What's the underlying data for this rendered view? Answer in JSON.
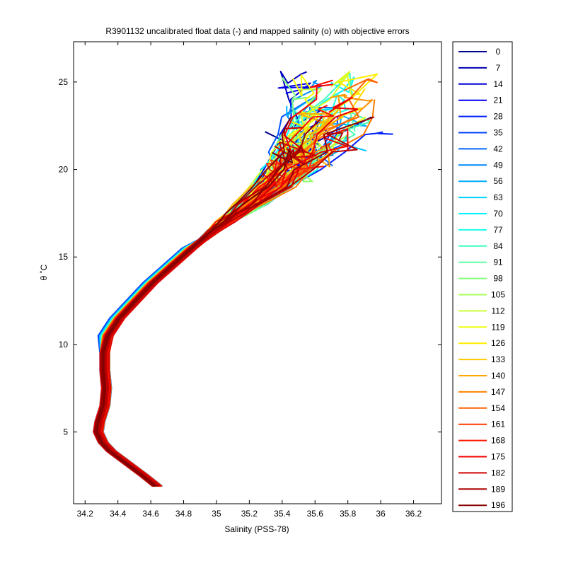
{
  "chart_data": {
    "type": "line",
    "title": "R3901132 uncalibrated float data (-) and mapped salinity (o) with objective errors",
    "xlabel": "Salinity (PSS-78)",
    "ylabel": "θ ˚C",
    "xlim": [
      34.13,
      36.37
    ],
    "ylim": [
      0.9,
      27.3
    ],
    "xticks": [
      "34.2",
      "34.4",
      "34.6",
      "34.8",
      "35",
      "35.2",
      "35.4",
      "35.6",
      "35.8",
      "36",
      "36.2"
    ],
    "xtick_values": [
      34.2,
      34.4,
      34.6,
      34.8,
      35.0,
      35.2,
      35.4,
      35.6,
      35.8,
      36.0,
      36.2
    ],
    "yticks": [
      "5",
      "10",
      "15",
      "20",
      "25"
    ],
    "ytick_values": [
      5,
      10,
      15,
      20,
      25
    ],
    "grid": false,
    "legend_position": "outside-right",
    "colormap": "jet",
    "profile_numbers": [
      "0",
      "7",
      "14",
      "21",
      "28",
      "35",
      "42",
      "49",
      "56",
      "63",
      "70",
      "77",
      "84",
      "91",
      "98",
      "105",
      "112",
      "119",
      "126",
      "133",
      "140",
      "147",
      "154",
      "161",
      "168",
      "175",
      "182",
      "189",
      "196"
    ],
    "legend_colors": [
      "#00008f",
      "#0000b3",
      "#0000d6",
      "#0000fa",
      "#001eff",
      "#0042ff",
      "#0065ff",
      "#0089ff",
      "#00acff",
      "#00d0ff",
      "#00f4ff",
      "#18ffe7",
      "#3cffc3",
      "#5fffa0",
      "#83ff7c",
      "#a6ff59",
      "#caff35",
      "#eeff11",
      "#ffed00",
      "#ffca00",
      "#ffa600",
      "#ff8300",
      "#ff5f00",
      "#ff3c00",
      "#ff1800",
      "#f40000",
      "#d00000",
      "#ac0000",
      "#890000"
    ],
    "base_profile": {
      "theta": [
        1.9,
        2.5,
        3.2,
        3.9,
        4.4,
        5.0,
        5.6,
        6.5,
        7.5,
        8.5,
        9.5,
        10.5,
        11.5,
        12.5,
        13.5,
        14.5,
        15.5,
        16.0,
        16.5,
        17.0,
        17.5,
        18.0,
        19.0,
        20.0,
        21.0,
        22.0,
        23.0,
        24.0
      ],
      "salinity": [
        34.64,
        34.56,
        34.46,
        34.36,
        34.31,
        34.28,
        34.29,
        34.32,
        34.33,
        34.32,
        34.32,
        34.35,
        34.42,
        34.52,
        34.62,
        34.74,
        34.86,
        34.92,
        34.98,
        35.04,
        35.11,
        35.18,
        35.3,
        35.4,
        35.48,
        35.55,
        35.62,
        35.68
      ]
    }
  }
}
